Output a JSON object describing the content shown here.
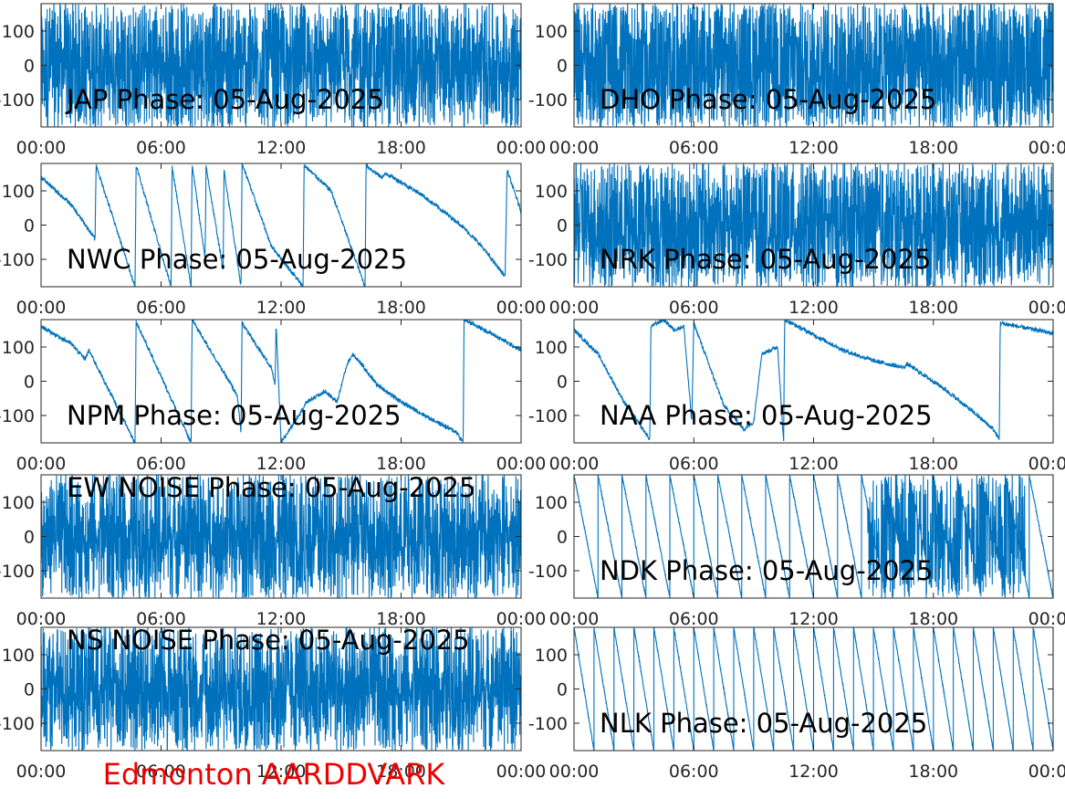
{
  "footer": {
    "label": "Edmonton AARDDVARK",
    "color": "#ee0000"
  },
  "style": {
    "line_color": "#0072bd",
    "axis_color": "#262626"
  },
  "chart_data": [
    {
      "type": "line",
      "title": "JAP Phase: 05-Aug-2025",
      "xticks": [
        "00:00",
        "06:00",
        "12:00",
        "18:00",
        "00:00"
      ],
      "yticks": [
        100,
        0,
        -100
      ],
      "ylim": [
        -180,
        180
      ],
      "xlim": [
        0,
        24
      ],
      "behavior": "noisy",
      "noise_level": 0.85,
      "anchors": []
    },
    {
      "type": "line",
      "title": "DHO Phase: 05-Aug-2025",
      "xticks": [
        "00:00",
        "06:00",
        "12:00",
        "18:00",
        "00:00"
      ],
      "yticks": [
        100,
        0,
        -100
      ],
      "ylim": [
        -180,
        180
      ],
      "xlim": [
        0,
        24
      ],
      "behavior": "noisy",
      "noise_level": 1.0,
      "anchors": []
    },
    {
      "type": "line",
      "title": "NWC Phase: 05-Aug-2025",
      "xticks": [
        "00:00",
        "06:00",
        "12:00",
        "18:00",
        "00:00"
      ],
      "yticks": [
        100,
        0,
        -100
      ],
      "ylim": [
        -180,
        180
      ],
      "xlim": [
        0,
        24
      ],
      "behavior": "wrap",
      "anchors": [
        [
          0.0,
          140
        ],
        [
          1.5,
          60
        ],
        [
          2.7,
          -40
        ],
        [
          2.75,
          175
        ],
        [
          4.7,
          -180
        ],
        [
          4.75,
          175
        ],
        [
          6.5,
          -180
        ],
        [
          6.55,
          170
        ],
        [
          7.5,
          -180
        ],
        [
          7.55,
          180
        ],
        [
          8.2,
          -100
        ],
        [
          8.25,
          170
        ],
        [
          9.1,
          -130
        ],
        [
          9.15,
          160
        ],
        [
          10.0,
          -180
        ],
        [
          10.05,
          180
        ],
        [
          11.5,
          -60
        ],
        [
          13.1,
          -180
        ],
        [
          13.15,
          175
        ],
        [
          14.5,
          100
        ],
        [
          16.2,
          -180
        ],
        [
          16.25,
          175
        ],
        [
          17.0,
          140
        ],
        [
          17.3,
          150
        ],
        [
          19.0,
          90
        ],
        [
          21.0,
          0
        ],
        [
          22.0,
          -60
        ],
        [
          23.2,
          -150
        ],
        [
          23.3,
          160
        ],
        [
          24.0,
          40
        ]
      ]
    },
    {
      "type": "line",
      "title": "NRK Phase: 05-Aug-2025",
      "xticks": [
        "00:00",
        "06:00",
        "12:00",
        "18:00",
        "00:00"
      ],
      "yticks": [
        100,
        0,
        -100
      ],
      "ylim": [
        -180,
        180
      ],
      "xlim": [
        0,
        24
      ],
      "behavior": "noisy",
      "noise_level": 0.9,
      "anchors": []
    },
    {
      "type": "line",
      "title": "NPM Phase: 05-Aug-2025",
      "xticks": [
        "00:00",
        "06:00",
        "12:00",
        "18:00",
        "00:00"
      ],
      "yticks": [
        100,
        0,
        -100
      ],
      "ylim": [
        -180,
        180
      ],
      "xlim": [
        0,
        24
      ],
      "behavior": "wrap",
      "anchors": [
        [
          0.0,
          160
        ],
        [
          1.5,
          110
        ],
        [
          2.2,
          65
        ],
        [
          2.4,
          90
        ],
        [
          4.7,
          -180
        ],
        [
          4.75,
          175
        ],
        [
          7.5,
          -180
        ],
        [
          7.55,
          180
        ],
        [
          9.8,
          -40
        ],
        [
          10.0,
          -150
        ],
        [
          10.05,
          170
        ],
        [
          11.5,
          40
        ],
        [
          11.7,
          -10
        ],
        [
          11.75,
          170
        ],
        [
          12.0,
          -180
        ],
        [
          13.3,
          -60
        ],
        [
          14.2,
          -30
        ],
        [
          14.8,
          -60
        ],
        [
          15.3,
          50
        ],
        [
          15.6,
          80
        ],
        [
          16.8,
          -10
        ],
        [
          18.0,
          -60
        ],
        [
          19.5,
          -110
        ],
        [
          20.8,
          -150
        ],
        [
          21.1,
          -180
        ],
        [
          21.15,
          180
        ],
        [
          22.5,
          140
        ],
        [
          24.0,
          90
        ]
      ]
    },
    {
      "type": "line",
      "title": "NAA Phase: 05-Aug-2025",
      "xticks": [
        "00:00",
        "06:00",
        "12:00",
        "18:00",
        "00:00"
      ],
      "yticks": [
        100,
        0,
        -100
      ],
      "ylim": [
        -180,
        180
      ],
      "xlim": [
        0,
        24
      ],
      "behavior": "wrap",
      "anchors": [
        [
          0.0,
          150
        ],
        [
          1.2,
          80
        ],
        [
          2.5,
          -60
        ],
        [
          3.8,
          -170
        ],
        [
          3.85,
          160
        ],
        [
          4.5,
          180
        ],
        [
          5.0,
          150
        ],
        [
          5.5,
          160
        ],
        [
          5.9,
          -120
        ],
        [
          6.0,
          170
        ],
        [
          7.5,
          -70
        ],
        [
          8.5,
          -140
        ],
        [
          9.0,
          -120
        ],
        [
          9.4,
          80
        ],
        [
          10.2,
          100
        ],
        [
          10.5,
          -180
        ],
        [
          10.55,
          180
        ],
        [
          13.5,
          90
        ],
        [
          15.0,
          60
        ],
        [
          16.5,
          40
        ],
        [
          16.7,
          50
        ],
        [
          18.5,
          -20
        ],
        [
          20.0,
          -90
        ],
        [
          21.0,
          -140
        ],
        [
          21.3,
          -170
        ],
        [
          21.35,
          170
        ],
        [
          24.0,
          140
        ]
      ]
    },
    {
      "type": "line",
      "title": "EW NOISE Phase: 05-Aug-2025",
      "xticks": [
        "00:00",
        "06:00",
        "12:00",
        "18:00",
        "00:00"
      ],
      "yticks": [
        100,
        0,
        -100
      ],
      "ylim": [
        -180,
        180
      ],
      "xlim": [
        0,
        24
      ],
      "behavior": "noisy",
      "noise_level": 0.8,
      "anchors": []
    },
    {
      "type": "line",
      "title": "NDK Phase: 05-Aug-2025",
      "xticks": [
        "00:00",
        "06:00",
        "12:00",
        "18:00",
        "00:00"
      ],
      "yticks": [
        100,
        0,
        -100
      ],
      "ylim": [
        -180,
        180
      ],
      "xlim": [
        0,
        24
      ],
      "behavior": "sawtooth",
      "period_hours": 1.2,
      "noisy_range": [
        14.7,
        22.6
      ]
    },
    {
      "type": "line",
      "title": "NS NOISE Phase: 05-Aug-2025",
      "xticks": [
        "00:00",
        "06:00",
        "12:00",
        "18:00",
        "00:00"
      ],
      "yticks": [
        100,
        0,
        -100
      ],
      "ylim": [
        -180,
        180
      ],
      "xlim": [
        0,
        24
      ],
      "behavior": "noisy",
      "noise_level": 0.8,
      "anchors": []
    },
    {
      "type": "line",
      "title": "NLK Phase: 05-Aug-2025",
      "xticks": [
        "00:00",
        "06:00",
        "12:00",
        "18:00",
        "00:00"
      ],
      "yticks": [
        100,
        0,
        -100
      ],
      "ylim": [
        -180,
        180
      ],
      "xlim": [
        0,
        24
      ],
      "behavior": "sawtooth",
      "period_hours": 1.0,
      "noisy_range": []
    }
  ]
}
